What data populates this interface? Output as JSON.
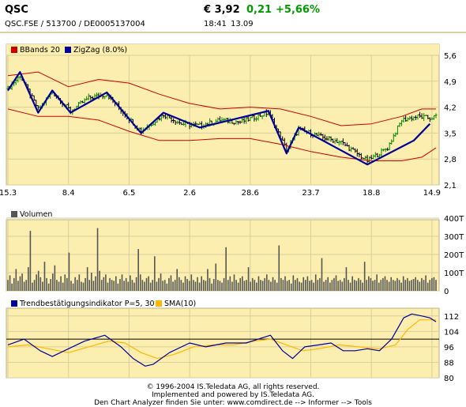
{
  "header": {
    "symbol": "QSC",
    "identifiers": "QSC.FSE  /  513700  /  DE0005137004",
    "price": "€ 3,92",
    "change_abs": "0,21",
    "change_pct": "+5,66%",
    "time": "18:41",
    "date": "13.09",
    "up_color": "#009900"
  },
  "colors": {
    "panel_bg": "#fbeeae",
    "grid": "#d7cf9c",
    "bband": "#cc0000",
    "zigzag": "#000099",
    "bar_up": "#008800",
    "bar_down": "#000000",
    "volume": "#555555",
    "indicator": "#000099",
    "sma": "#ffb800",
    "ref_line": "#000000"
  },
  "chart_data": [
    {
      "type": "line",
      "subtype": "ohlc-bars",
      "legend": [
        {
          "label": "BBands 20",
          "color": "#cc0000"
        },
        {
          "label": "ZigZag (8.0%)",
          "color": "#000099"
        }
      ],
      "x_tick_labels": [
        "15.3",
        "8.4",
        "6.5",
        "2.6",
        "28.6",
        "23.7",
        "18.8",
        "14.9"
      ],
      "y_tick_labels": [
        "5,6",
        "4,9",
        "4,2",
        "3,5",
        "2,8",
        "2,1"
      ],
      "ylim": [
        2.1,
        5.6
      ],
      "zigzag": [
        {
          "i": 0,
          "y": 4.65
        },
        {
          "i": 6,
          "y": 5.15
        },
        {
          "i": 15,
          "y": 4.05
        },
        {
          "i": 22,
          "y": 4.65
        },
        {
          "i": 31,
          "y": 4.05
        },
        {
          "i": 49,
          "y": 4.6
        },
        {
          "i": 66,
          "y": 3.5
        },
        {
          "i": 77,
          "y": 4.05
        },
        {
          "i": 95,
          "y": 3.65
        },
        {
          "i": 129,
          "y": 4.1
        },
        {
          "i": 138,
          "y": 2.95
        },
        {
          "i": 144,
          "y": 3.65
        },
        {
          "i": 178,
          "y": 2.65
        },
        {
          "i": 201,
          "y": 3.3
        },
        {
          "i": 209,
          "y": 3.75
        }
      ],
      "bband_upper": [
        {
          "i": 0,
          "y": 5.05
        },
        {
          "i": 15,
          "y": 5.15
        },
        {
          "i": 30,
          "y": 4.75
        },
        {
          "i": 45,
          "y": 4.95
        },
        {
          "i": 60,
          "y": 4.85
        },
        {
          "i": 75,
          "y": 4.55
        },
        {
          "i": 90,
          "y": 4.3
        },
        {
          "i": 105,
          "y": 4.15
        },
        {
          "i": 120,
          "y": 4.2
        },
        {
          "i": 135,
          "y": 4.15
        },
        {
          "i": 150,
          "y": 3.95
        },
        {
          "i": 165,
          "y": 3.7
        },
        {
          "i": 180,
          "y": 3.75
        },
        {
          "i": 195,
          "y": 3.95
        },
        {
          "i": 205,
          "y": 4.15
        },
        {
          "i": 212,
          "y": 4.15
        }
      ],
      "bband_lower": [
        {
          "i": 0,
          "y": 4.15
        },
        {
          "i": 15,
          "y": 3.95
        },
        {
          "i": 30,
          "y": 3.95
        },
        {
          "i": 45,
          "y": 3.85
        },
        {
          "i": 60,
          "y": 3.55
        },
        {
          "i": 75,
          "y": 3.3
        },
        {
          "i": 90,
          "y": 3.3
        },
        {
          "i": 105,
          "y": 3.35
        },
        {
          "i": 120,
          "y": 3.35
        },
        {
          "i": 135,
          "y": 3.2
        },
        {
          "i": 150,
          "y": 3.0
        },
        {
          "i": 165,
          "y": 2.85
        },
        {
          "i": 180,
          "y": 2.75
        },
        {
          "i": 195,
          "y": 2.75
        },
        {
          "i": 205,
          "y": 2.85
        },
        {
          "i": 212,
          "y": 3.1
        }
      ],
      "close_path": [
        {
          "i": 0,
          "y": 4.7
        },
        {
          "i": 6,
          "y": 5.05
        },
        {
          "i": 15,
          "y": 4.15
        },
        {
          "i": 22,
          "y": 4.6
        },
        {
          "i": 31,
          "y": 4.1
        },
        {
          "i": 40,
          "y": 4.45
        },
        {
          "i": 49,
          "y": 4.55
        },
        {
          "i": 58,
          "y": 4.0
        },
        {
          "i": 66,
          "y": 3.55
        },
        {
          "i": 77,
          "y": 4.0
        },
        {
          "i": 86,
          "y": 3.75
        },
        {
          "i": 95,
          "y": 3.7
        },
        {
          "i": 105,
          "y": 3.85
        },
        {
          "i": 115,
          "y": 3.8
        },
        {
          "i": 129,
          "y": 4.05
        },
        {
          "i": 138,
          "y": 3.05
        },
        {
          "i": 144,
          "y": 3.6
        },
        {
          "i": 155,
          "y": 3.4
        },
        {
          "i": 165,
          "y": 3.25
        },
        {
          "i": 178,
          "y": 2.75
        },
        {
          "i": 188,
          "y": 3.1
        },
        {
          "i": 195,
          "y": 3.85
        },
        {
          "i": 203,
          "y": 3.95
        },
        {
          "i": 209,
          "y": 3.9
        },
        {
          "i": 212,
          "y": 3.95
        }
      ]
    },
    {
      "type": "bar",
      "legend": [
        {
          "label": "Volumen",
          "color": "#555555"
        }
      ],
      "y_tick_labels": [
        "400T",
        "300T",
        "200T",
        "100T",
        "0"
      ],
      "ylim": [
        0,
        400
      ],
      "values": [
        60,
        85,
        40,
        70,
        120,
        55,
        80,
        95,
        50,
        60,
        130,
        330,
        45,
        60,
        90,
        110,
        75,
        50,
        160,
        70,
        40,
        65,
        95,
        140,
        60,
        50,
        80,
        45,
        90,
        70,
        210,
        55,
        40,
        75,
        60,
        90,
        50,
        45,
        70,
        130,
        60,
        100,
        55,
        80,
        345,
        110,
        60,
        75,
        90,
        45,
        70,
        60,
        55,
        80,
        40,
        65,
        90,
        55,
        70,
        50,
        85,
        60,
        45,
        75,
        230,
        90,
        60,
        50,
        70,
        80,
        45,
        60,
        190,
        50,
        70,
        95,
        55,
        60,
        40,
        70,
        85,
        50,
        60,
        120,
        75,
        60,
        45,
        80,
        65,
        55,
        90,
        60,
        50,
        75,
        45,
        80,
        60,
        55,
        120,
        70,
        40,
        65,
        150,
        60,
        55,
        45,
        70,
        240,
        60,
        80,
        50,
        90,
        60,
        45,
        70,
        80,
        55,
        60,
        130,
        50,
        70,
        60,
        45,
        80,
        60,
        55,
        70,
        90,
        60,
        50,
        75,
        60,
        45,
        250,
        70,
        60,
        80,
        55,
        60,
        40,
        85,
        60,
        70,
        50,
        45,
        75,
        60,
        80,
        55,
        60,
        45,
        90,
        60,
        70,
        180,
        50,
        60,
        75,
        45,
        60,
        70,
        85,
        55,
        60,
        50,
        70,
        130,
        60,
        45,
        80,
        60,
        55,
        70,
        60,
        45,
        160,
        60,
        80,
        70,
        55,
        60,
        90,
        45,
        60,
        70,
        80,
        60,
        50,
        75,
        60,
        55,
        70,
        60,
        45,
        80,
        60,
        70,
        55,
        60,
        65,
        75,
        60,
        50,
        70,
        60,
        85,
        45,
        60,
        70,
        75,
        60
      ]
    },
    {
      "type": "line",
      "legend": [
        {
          "label": "Trendbestätigungsindikator P=5, 30",
          "color": "#000099"
        },
        {
          "label": "SMA(10)",
          "color": "#ffb800"
        }
      ],
      "y_tick_labels": [
        "112",
        "104",
        "96",
        "88",
        "80"
      ],
      "ylim": [
        80,
        116
      ],
      "reference_line": 100,
      "series": [
        {
          "points": [
            {
              "i": 0,
              "y": 97
            },
            {
              "i": 8,
              "y": 100
            },
            {
              "i": 16,
              "y": 94
            },
            {
              "i": 22,
              "y": 91
            },
            {
              "i": 30,
              "y": 95
            },
            {
              "i": 38,
              "y": 99
            },
            {
              "i": 48,
              "y": 102
            },
            {
              "i": 56,
              "y": 96
            },
            {
              "i": 62,
              "y": 90
            },
            {
              "i": 68,
              "y": 86
            },
            {
              "i": 72,
              "y": 87
            },
            {
              "i": 80,
              "y": 93
            },
            {
              "i": 90,
              "y": 98
            },
            {
              "i": 98,
              "y": 96
            },
            {
              "i": 108,
              "y": 98
            },
            {
              "i": 118,
              "y": 98
            },
            {
              "i": 124,
              "y": 100
            },
            {
              "i": 130,
              "y": 102
            },
            {
              "i": 136,
              "y": 94
            },
            {
              "i": 141,
              "y": 90
            },
            {
              "i": 147,
              "y": 96
            },
            {
              "i": 154,
              "y": 97
            },
            {
              "i": 160,
              "y": 98
            },
            {
              "i": 166,
              "y": 94
            },
            {
              "i": 172,
              "y": 94
            },
            {
              "i": 178,
              "y": 95
            },
            {
              "i": 184,
              "y": 94
            },
            {
              "i": 190,
              "y": 100
            },
            {
              "i": 196,
              "y": 111
            },
            {
              "i": 200,
              "y": 113
            },
            {
              "i": 205,
              "y": 112
            },
            {
              "i": 209,
              "y": 111
            },
            {
              "i": 212,
              "y": 109
            }
          ]
        },
        {
          "points": [
            {
              "i": 0,
              "y": 96
            },
            {
              "i": 10,
              "y": 97
            },
            {
              "i": 20,
              "y": 95
            },
            {
              "i": 30,
              "y": 93
            },
            {
              "i": 40,
              "y": 96
            },
            {
              "i": 50,
              "y": 99
            },
            {
              "i": 58,
              "y": 98
            },
            {
              "i": 66,
              "y": 93
            },
            {
              "i": 74,
              "y": 90
            },
            {
              "i": 82,
              "y": 92
            },
            {
              "i": 92,
              "y": 96
            },
            {
              "i": 102,
              "y": 97
            },
            {
              "i": 112,
              "y": 97
            },
            {
              "i": 122,
              "y": 99
            },
            {
              "i": 130,
              "y": 100
            },
            {
              "i": 138,
              "y": 97
            },
            {
              "i": 146,
              "y": 94
            },
            {
              "i": 154,
              "y": 95
            },
            {
              "i": 164,
              "y": 97
            },
            {
              "i": 174,
              "y": 96
            },
            {
              "i": 184,
              "y": 95
            },
            {
              "i": 192,
              "y": 97
            },
            {
              "i": 198,
              "y": 105
            },
            {
              "i": 204,
              "y": 110
            },
            {
              "i": 212,
              "y": 110
            }
          ]
        }
      ]
    }
  ],
  "footer": {
    "line1": "© 1996-2004 IS.Teledata AG, all rights reserved.",
    "line2": "Implemented and powered by IS.Teledata AG.",
    "line3": "Den Chart Analyzer finden Sie unter: www.comdirect.de --> Informer --> Tools"
  }
}
